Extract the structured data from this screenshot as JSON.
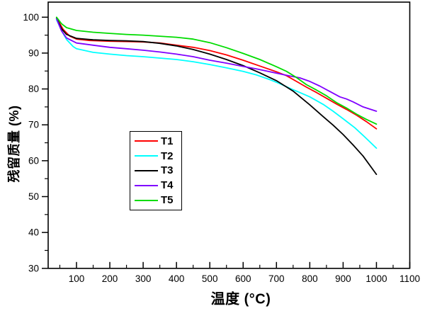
{
  "figure": {
    "background": "#ffffff"
  },
  "chart_data": {
    "type": "line",
    "title": "",
    "xlabel": "温度 (°C)",
    "ylabel": "残留质量 (%)",
    "xlim": [
      15,
      1100
    ],
    "ylim": [
      30,
      104.2
    ],
    "x_ticks": [
      100,
      200,
      300,
      400,
      500,
      600,
      700,
      800,
      900,
      1000,
      1100
    ],
    "x_minor_tick_step": 50,
    "y_ticks": [
      30,
      40,
      50,
      60,
      70,
      80,
      90,
      100
    ],
    "y_minor_tick_step": 5,
    "grid": false,
    "frame": true,
    "legend_position": "inside-center-left",
    "series": [
      {
        "name": "T1",
        "color": "#ff0000",
        "points": [
          [
            40,
            99.8
          ],
          [
            50,
            98.2
          ],
          [
            60,
            96.6
          ],
          [
            80,
            94.7
          ],
          [
            100,
            93.9
          ],
          [
            140,
            93.5
          ],
          [
            200,
            93.3
          ],
          [
            260,
            93.2
          ],
          [
            300,
            93.1
          ],
          [
            350,
            92.8
          ],
          [
            400,
            92.2
          ],
          [
            450,
            91.6
          ],
          [
            500,
            90.7
          ],
          [
            550,
            89.5
          ],
          [
            600,
            88.0
          ],
          [
            650,
            86.4
          ],
          [
            700,
            84.8
          ],
          [
            730,
            83.7
          ],
          [
            760,
            82.1
          ],
          [
            790,
            80.5
          ],
          [
            820,
            79.0
          ],
          [
            850,
            77.4
          ],
          [
            880,
            75.8
          ],
          [
            910,
            74.3
          ],
          [
            940,
            72.7
          ],
          [
            970,
            70.9
          ],
          [
            1000,
            68.9
          ]
        ]
      },
      {
        "name": "T2",
        "color": "#00ffff",
        "points": [
          [
            40,
            99.3
          ],
          [
            55,
            96.3
          ],
          [
            70,
            93.8
          ],
          [
            90,
            91.8
          ],
          [
            100,
            91.2
          ],
          [
            150,
            90.2
          ],
          [
            200,
            89.7
          ],
          [
            250,
            89.3
          ],
          [
            300,
            89.0
          ],
          [
            350,
            88.6
          ],
          [
            400,
            88.2
          ],
          [
            450,
            87.6
          ],
          [
            500,
            86.8
          ],
          [
            550,
            85.9
          ],
          [
            600,
            84.9
          ],
          [
            640,
            83.9
          ],
          [
            680,
            82.6
          ],
          [
            710,
            81.5
          ],
          [
            740,
            80.2
          ],
          [
            770,
            79.0
          ],
          [
            800,
            77.8
          ],
          [
            840,
            75.7
          ],
          [
            870,
            73.8
          ],
          [
            900,
            71.7
          ],
          [
            935,
            69.2
          ],
          [
            965,
            66.6
          ],
          [
            1000,
            63.5
          ]
        ]
      },
      {
        "name": "T3",
        "color": "#000000",
        "points": [
          [
            40,
            99.7
          ],
          [
            55,
            96.8
          ],
          [
            70,
            95.2
          ],
          [
            100,
            94.1
          ],
          [
            150,
            93.7
          ],
          [
            200,
            93.5
          ],
          [
            250,
            93.4
          ],
          [
            300,
            93.2
          ],
          [
            350,
            92.7
          ],
          [
            400,
            92.0
          ],
          [
            450,
            91.0
          ],
          [
            500,
            89.7
          ],
          [
            550,
            88.2
          ],
          [
            600,
            86.5
          ],
          [
            650,
            84.5
          ],
          [
            700,
            82.3
          ],
          [
            750,
            79.4
          ],
          [
            800,
            75.6
          ],
          [
            840,
            72.3
          ],
          [
            870,
            69.9
          ],
          [
            900,
            67.3
          ],
          [
            930,
            64.4
          ],
          [
            960,
            61.3
          ],
          [
            1000,
            56.2
          ]
        ]
      },
      {
        "name": "T4",
        "color": "#8000ff",
        "points": [
          [
            40,
            99.6
          ],
          [
            55,
            96.2
          ],
          [
            70,
            94.2
          ],
          [
            100,
            92.8
          ],
          [
            150,
            92.2
          ],
          [
            200,
            91.6
          ],
          [
            250,
            91.2
          ],
          [
            300,
            90.8
          ],
          [
            350,
            90.3
          ],
          [
            400,
            89.7
          ],
          [
            450,
            89.0
          ],
          [
            500,
            88.0
          ],
          [
            550,
            87.2
          ],
          [
            600,
            86.3
          ],
          [
            640,
            85.6
          ],
          [
            680,
            84.8
          ],
          [
            710,
            84.2
          ],
          [
            740,
            83.6
          ],
          [
            770,
            83.1
          ],
          [
            800,
            82.1
          ],
          [
            830,
            80.8
          ],
          [
            860,
            79.3
          ],
          [
            890,
            77.8
          ],
          [
            910,
            77.2
          ],
          [
            930,
            76.4
          ],
          [
            960,
            75.0
          ],
          [
            1000,
            73.8
          ]
        ]
      },
      {
        "name": "T5",
        "color": "#00dc00",
        "points": [
          [
            40,
            100
          ],
          [
            55,
            98.2
          ],
          [
            70,
            97.1
          ],
          [
            100,
            96.3
          ],
          [
            150,
            95.8
          ],
          [
            200,
            95.5
          ],
          [
            250,
            95.2
          ],
          [
            300,
            95.0
          ],
          [
            350,
            94.7
          ],
          [
            400,
            94.4
          ],
          [
            450,
            93.9
          ],
          [
            500,
            92.9
          ],
          [
            550,
            91.5
          ],
          [
            600,
            89.9
          ],
          [
            650,
            88.2
          ],
          [
            700,
            86.2
          ],
          [
            730,
            84.9
          ],
          [
            760,
            83.2
          ],
          [
            790,
            81.2
          ],
          [
            820,
            79.7
          ],
          [
            850,
            78.1
          ],
          [
            880,
            76.2
          ],
          [
            910,
            74.7
          ],
          [
            940,
            73.0
          ],
          [
            970,
            71.5
          ],
          [
            1000,
            70.2
          ]
        ]
      }
    ]
  }
}
